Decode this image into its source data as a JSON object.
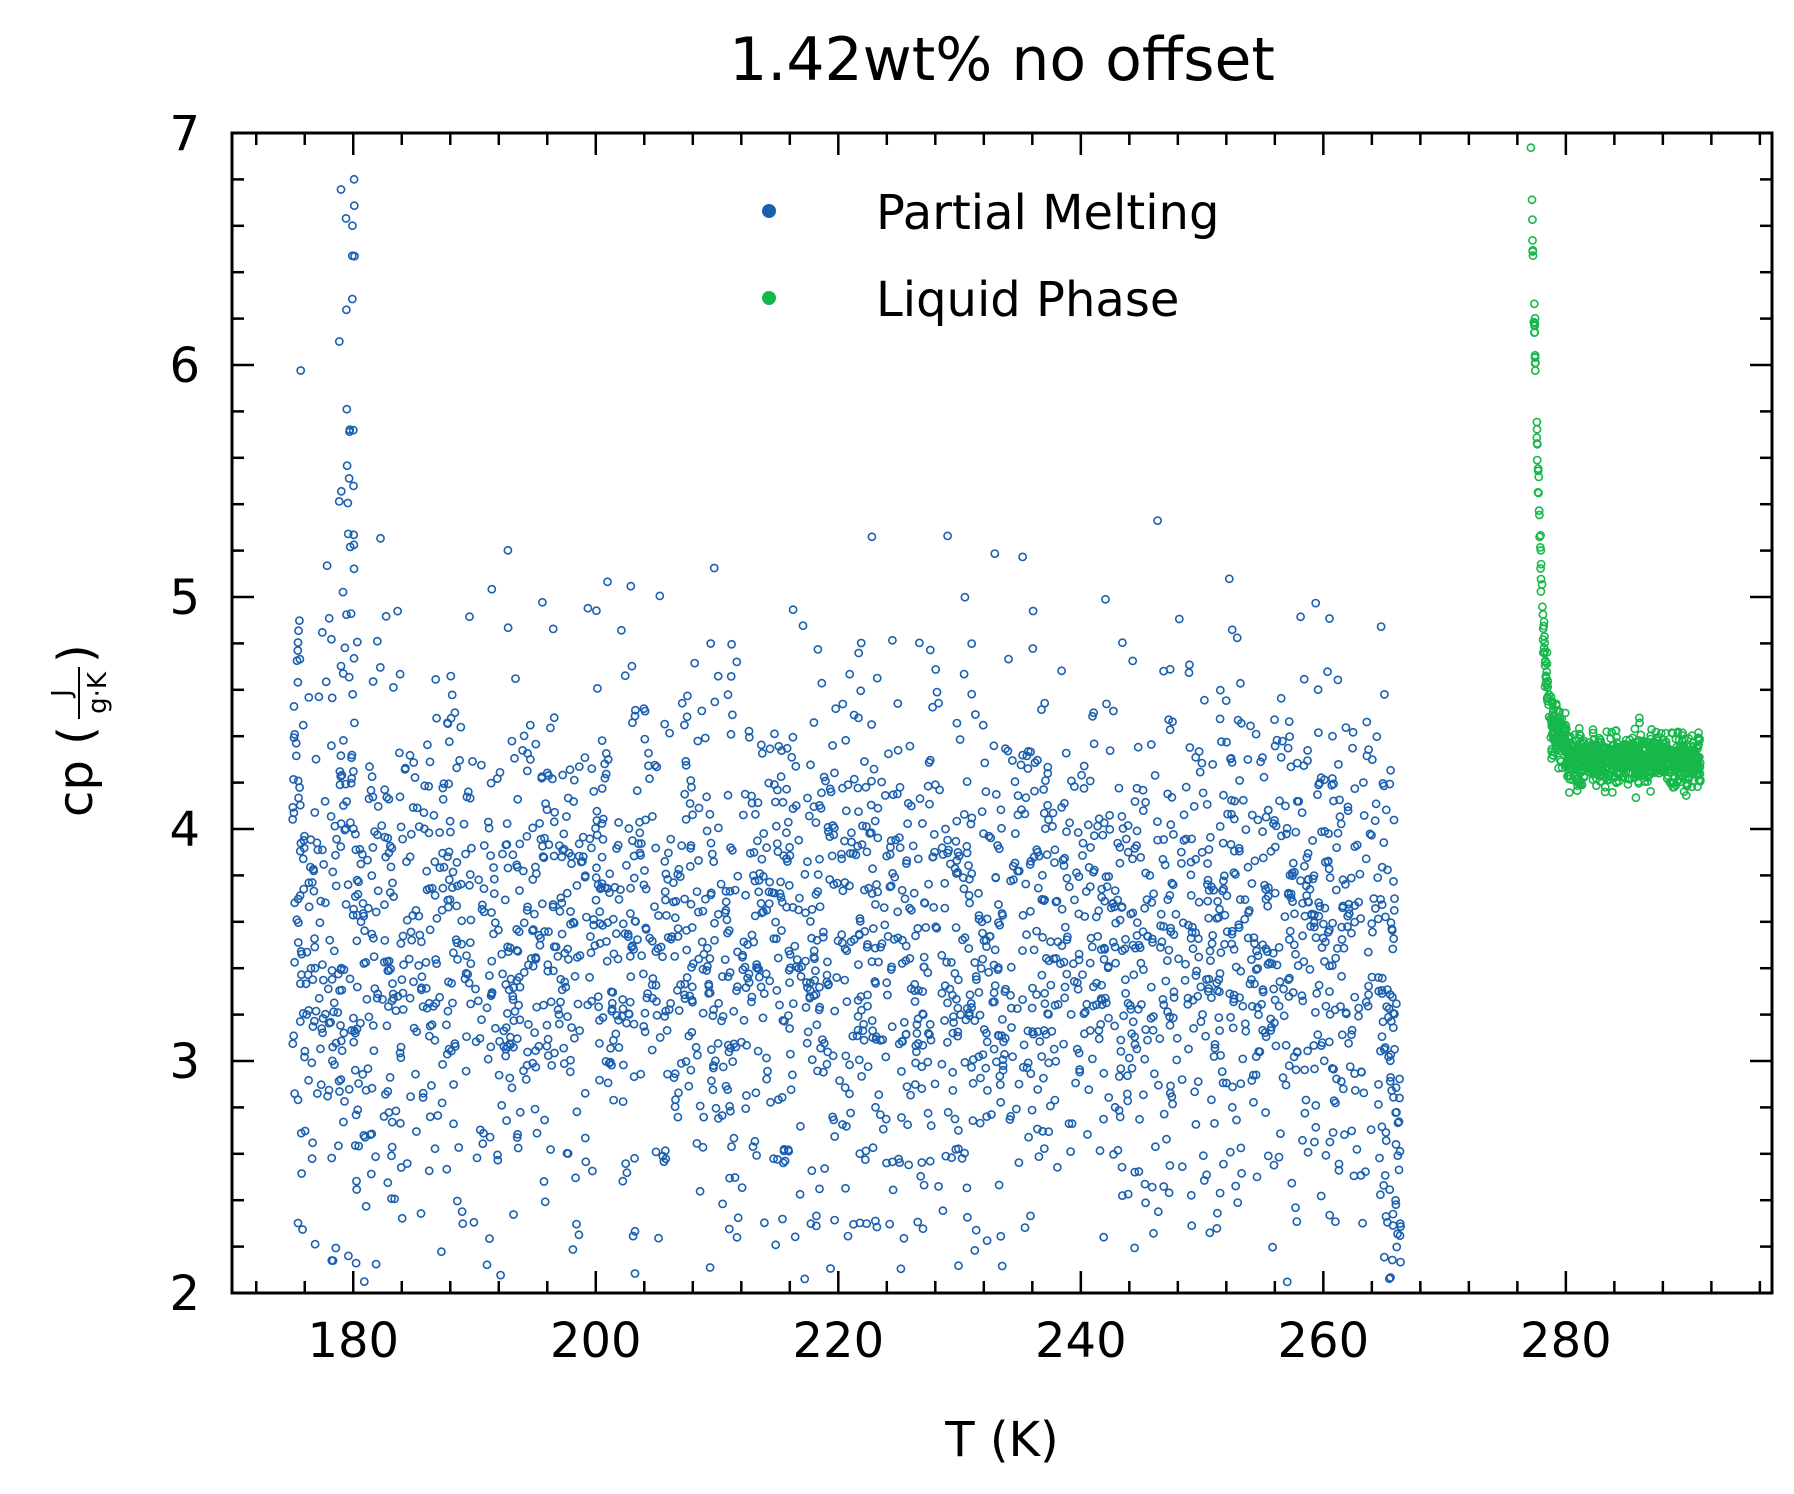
{
  "chart_data": {
    "type": "scatter",
    "title": "1.42wt% no offset",
    "xlabel": "T (K)",
    "ylabel": {
      "prefix": "cp (",
      "numerator": "J",
      "denominator": "g·K",
      "suffix": ")"
    },
    "xlim": [
      170,
      297
    ],
    "ylim": [
      2,
      7
    ],
    "x_ticks": [
      180,
      200,
      220,
      240,
      260,
      280
    ],
    "y_ticks": [
      2,
      3,
      4,
      5,
      6,
      7
    ],
    "grid": false,
    "legend_position": "top-center",
    "marker": "hollow-circle",
    "series": [
      {
        "name": "Partial Melting",
        "color": "#1a5fb0",
        "x_range": [
          175,
          266.5
        ],
        "description_of_values": "dense scatter centered near cp≈3.5 with spread 2.0–5.3; spike near T≈179 up to ~6.8"
      },
      {
        "name": "Liquid Phase",
        "color": "#17b84b",
        "x_range": [
          277,
          291
        ],
        "description_of_values": "steep drop from ~7 at T≈277 to ~4.5 at T≈279, then plateau near cp≈4.3"
      }
    ]
  }
}
